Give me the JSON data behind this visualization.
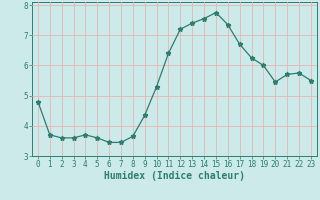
{
  "title": "",
  "xlabel": "Humidex (Indice chaleur)",
  "ylabel": "",
  "x_values": [
    0,
    1,
    2,
    3,
    4,
    5,
    6,
    7,
    8,
    9,
    10,
    11,
    12,
    13,
    14,
    15,
    16,
    17,
    18,
    19,
    20,
    21,
    22,
    23
  ],
  "y_values": [
    4.8,
    3.7,
    3.6,
    3.6,
    3.7,
    3.6,
    3.45,
    3.45,
    3.65,
    4.35,
    5.3,
    6.4,
    7.2,
    7.4,
    7.55,
    7.75,
    7.35,
    6.7,
    6.25,
    6.0,
    5.45,
    5.7,
    5.75,
    5.5
  ],
  "line_color": "#2e7d6e",
  "marker": "*",
  "marker_size": 3.5,
  "background_color": "#cdeaea",
  "grid_color": "#e8b4b4",
  "axis_color": "#2e7d6e",
  "tick_color": "#2e7d6e",
  "ylim": [
    3.0,
    8.1
  ],
  "xlim": [
    -0.5,
    23.5
  ],
  "yticks": [
    3,
    4,
    5,
    6,
    7,
    8
  ],
  "xticks": [
    0,
    1,
    2,
    3,
    4,
    5,
    6,
    7,
    8,
    9,
    10,
    11,
    12,
    13,
    14,
    15,
    16,
    17,
    18,
    19,
    20,
    21,
    22,
    23
  ],
  "tick_fontsize": 5.5,
  "label_fontsize": 7
}
